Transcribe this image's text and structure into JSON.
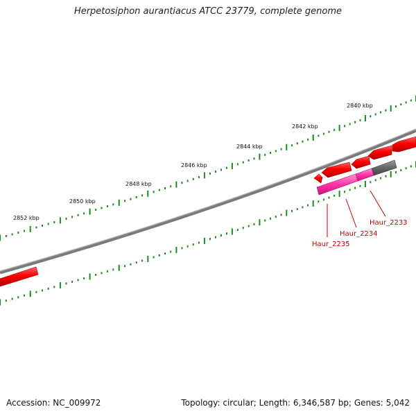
{
  "title": "Herpetosiphon aurantiacus ATCC 23779, complete genome",
  "footer": {
    "accession": "Accession: NC_009972",
    "topology": "Topology: circular; Length: 6,346,587 bp; Genes: 5,042"
  },
  "ruler": {
    "unit": "kbp",
    "ticks": [
      {
        "kbp": 2840,
        "label": "2840 kbp"
      },
      {
        "kbp": 2842,
        "label": "2842 kbp"
      },
      {
        "kbp": 2844,
        "label": "2844 kbp"
      },
      {
        "kbp": 2846,
        "label": "2846 kbp"
      },
      {
        "kbp": 2848,
        "label": "2848 kbp"
      },
      {
        "kbp": 2850,
        "label": "2850 kbp"
      },
      {
        "kbp": 2852,
        "label": "2852 kbp"
      }
    ]
  },
  "genes": [
    {
      "locus": "Haur_2233",
      "strand": "-",
      "type": "gene-other",
      "highlighted": true
    },
    {
      "locus": "Haur_2234",
      "strand": "-",
      "type": "highlighted-magenta",
      "highlighted": true
    },
    {
      "locus": "Haur_2235",
      "strand": "-",
      "type": "highlighted-magenta",
      "highlighted": true
    }
  ],
  "colors": {
    "backbone": "#7a7a7a",
    "gene_red": "#ff0000",
    "gene_magenta": "#ff3399",
    "gene_grey": "#666666",
    "tick_green": "#1a8a1a",
    "label_red": "#c00000"
  }
}
